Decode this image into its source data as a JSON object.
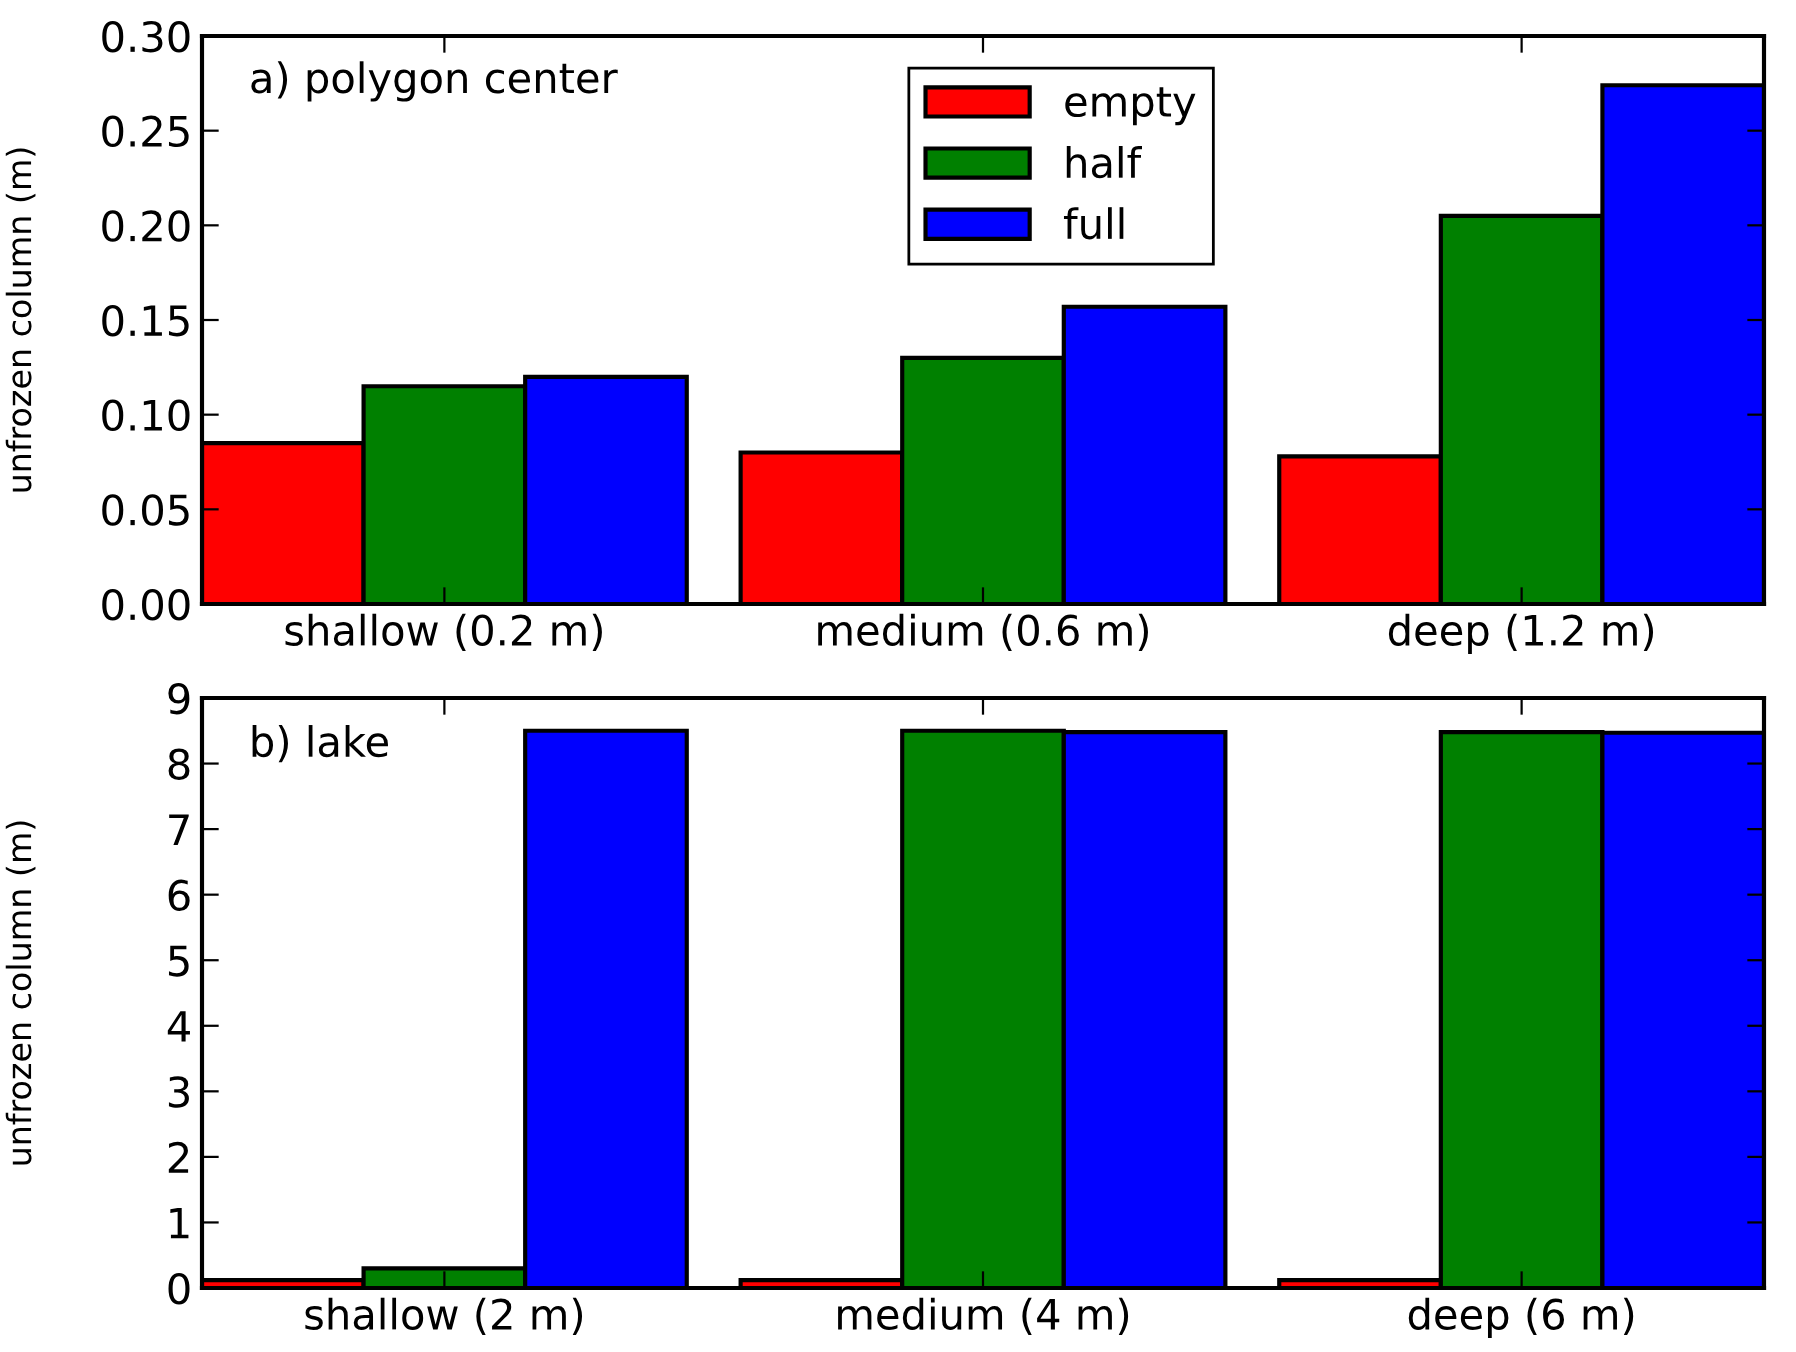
{
  "chart_data": [
    {
      "type": "bar",
      "annotations": [
        "a) polygon center"
      ],
      "ylabel": "unfrozen column (m)",
      "categories": [
        "shallow (0.2 m)",
        "medium (0.6 m)",
        "deep (1.2 m)"
      ],
      "series": [
        {
          "name": "empty",
          "color": "#ff0000",
          "values": [
            0.085,
            0.08,
            0.078
          ]
        },
        {
          "name": "half",
          "color": "#008000",
          "values": [
            0.115,
            0.13,
            0.205
          ]
        },
        {
          "name": "full",
          "color": "#0000ff",
          "values": [
            0.12,
            0.157,
            0.274
          ]
        }
      ],
      "ylim": [
        0,
        0.3
      ],
      "yticks": [
        {
          "value": 0,
          "label": "0.00"
        },
        {
          "value": 0.05,
          "label": "0.05"
        },
        {
          "value": 0.1,
          "label": "0.10"
        },
        {
          "value": 0.15,
          "label": "0.15"
        },
        {
          "value": 0.2,
          "label": "0.20"
        },
        {
          "value": 0.25,
          "label": "0.25"
        },
        {
          "value": 0.3,
          "label": "0.30"
        }
      ],
      "grid": false,
      "legend": "top"
    },
    {
      "type": "bar",
      "annotations": [
        "b) lake"
      ],
      "ylabel": "unfrozen column (m)",
      "categories": [
        "shallow (2 m)",
        "medium (4 m)",
        "deep (6 m)"
      ],
      "series": [
        {
          "color": "#ff0000",
          "values": [
            0.12,
            0.12,
            0.12
          ]
        },
        {
          "color": "#008000",
          "values": [
            0.3,
            8.5,
            8.48
          ]
        },
        {
          "color": "#0000ff",
          "values": [
            8.5,
            8.48,
            8.47
          ]
        }
      ],
      "ylim": [
        0,
        9
      ],
      "yticks": [
        0,
        1,
        2,
        3,
        4,
        5,
        6,
        7,
        8,
        9
      ],
      "grid": false,
      "legend": false
    }
  ]
}
